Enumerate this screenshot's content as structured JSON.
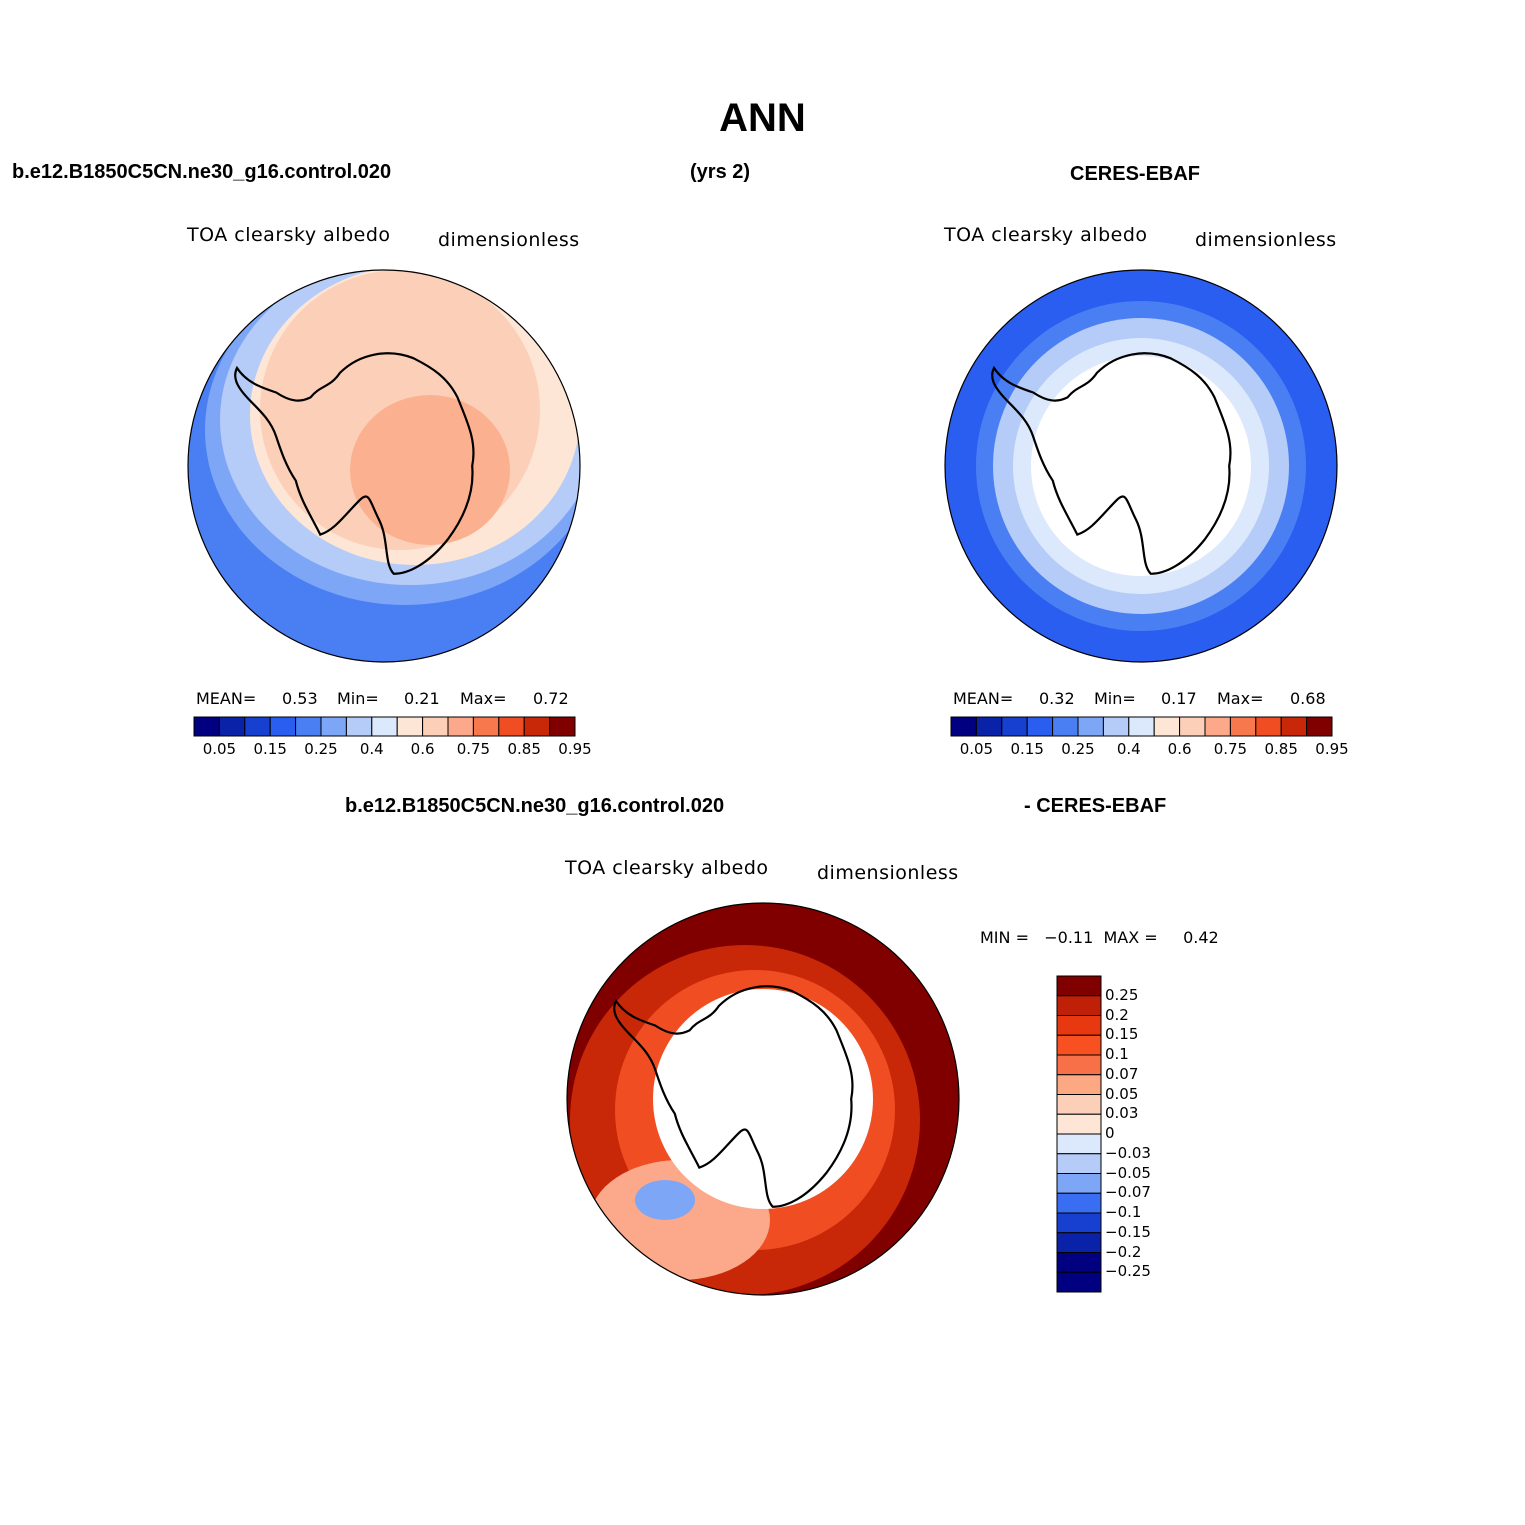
{
  "title": "ANN",
  "headers": {
    "case_name": "b.e12.B1850C5CN.ne30_g16.control.020",
    "years": "(yrs 2)",
    "obs_name": "CERES-EBAF",
    "diff_case": "b.e12.B1850C5CN.ne30_g16.control.020",
    "diff_obs": "- CERES-EBAF"
  },
  "panels": [
    {
      "id": "model",
      "variable_label": "TOA clearsky albedo",
      "units_label": "dimensionless",
      "stats": {
        "mean_label": "MEAN=",
        "mean": "0.53",
        "min_label": "Min=",
        "min": "0.21",
        "max_label": "Max=",
        "max": "0.72"
      }
    },
    {
      "id": "obs",
      "variable_label": "TOA clearsky albedo",
      "units_label": "dimensionless",
      "stats": {
        "mean_label": "MEAN=",
        "mean": "0.32",
        "min_label": "Min=",
        "min": "0.17",
        "max_label": "Max=",
        "max": "0.68"
      }
    },
    {
      "id": "diff",
      "variable_label": "TOA clearsky albedo",
      "units_label": "dimensionless",
      "stats": {
        "minmax": "MIN =   −0.11  MAX =     0.42"
      }
    }
  ],
  "colorbar_horizontal": {
    "colors": [
      "#000080",
      "#0a22a8",
      "#1740d0",
      "#2a5ef0",
      "#4a7ff4",
      "#7ea6f6",
      "#b5cbf8",
      "#dce9fc",
      "#fde6d6",
      "#fcd0b8",
      "#fba98a",
      "#f8784e",
      "#f04e22",
      "#c82808",
      "#800000"
    ],
    "tick_labels": [
      "0.05",
      "0.15",
      "0.25",
      "0.4",
      "0.6",
      "0.75",
      "0.85",
      "0.95"
    ]
  },
  "colorbar_vertical": {
    "colors": [
      "#800000",
      "#c02008",
      "#e83810",
      "#f85020",
      "#f87048",
      "#fca882",
      "#fcd0b8",
      "#fde6d6",
      "#dce9fc",
      "#b5cbf8",
      "#7ea6f6",
      "#3a6ef2",
      "#1740d0",
      "#0a22a8",
      "#000080",
      "#000080"
    ],
    "tick_labels": [
      "0.25",
      "0.2",
      "0.15",
      "0.1",
      "0.07",
      "0.05",
      "0.03",
      "0",
      "−0.03",
      "−0.05",
      "−0.07",
      "−0.1",
      "−0.15",
      "−0.2",
      "−0.25"
    ]
  },
  "map_colors": {
    "model_ocean_outer": "#4a7ff4",
    "model_ocean_mid": "#7ea6f6",
    "model_ice": "#b5cbf8",
    "model_pale": "#fde6d6",
    "model_peach": "#fcd0b8",
    "model_salmon": "#fbb090",
    "obs_outer": "#2a5ef0",
    "obs_mid": "#4a7ff4",
    "obs_light": "#b5cbf8",
    "obs_pale": "#dce9fc",
    "diff_dark": "#800000",
    "diff_red": "#c82808",
    "diff_orange": "#f04e22",
    "diff_light": "#fba98a",
    "diff_blue": "#7ea6f6"
  }
}
